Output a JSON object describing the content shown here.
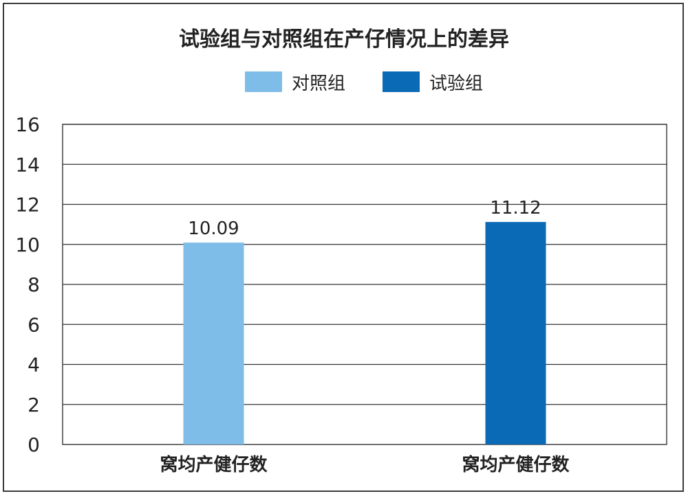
{
  "chart_data": {
    "type": "bar",
    "title": "试验组与对照组在产仔情况上的差异",
    "categories": [
      "窝均产健仔数",
      "窝均产健仔数"
    ],
    "series": [
      {
        "name": "对照组",
        "color": "#7dbde8",
        "values": [
          10.09,
          null
        ]
      },
      {
        "name": "试验组",
        "color": "#0b6ab5",
        "values": [
          null,
          11.12
        ]
      }
    ],
    "data_labels": [
      "10.09",
      "11.12"
    ],
    "ylim": [
      0,
      16
    ],
    "yticks": [
      0,
      2,
      4,
      6,
      8,
      10,
      12,
      14,
      16
    ],
    "xlabel": "",
    "ylabel": "",
    "grid": true,
    "legend_position": "top"
  }
}
